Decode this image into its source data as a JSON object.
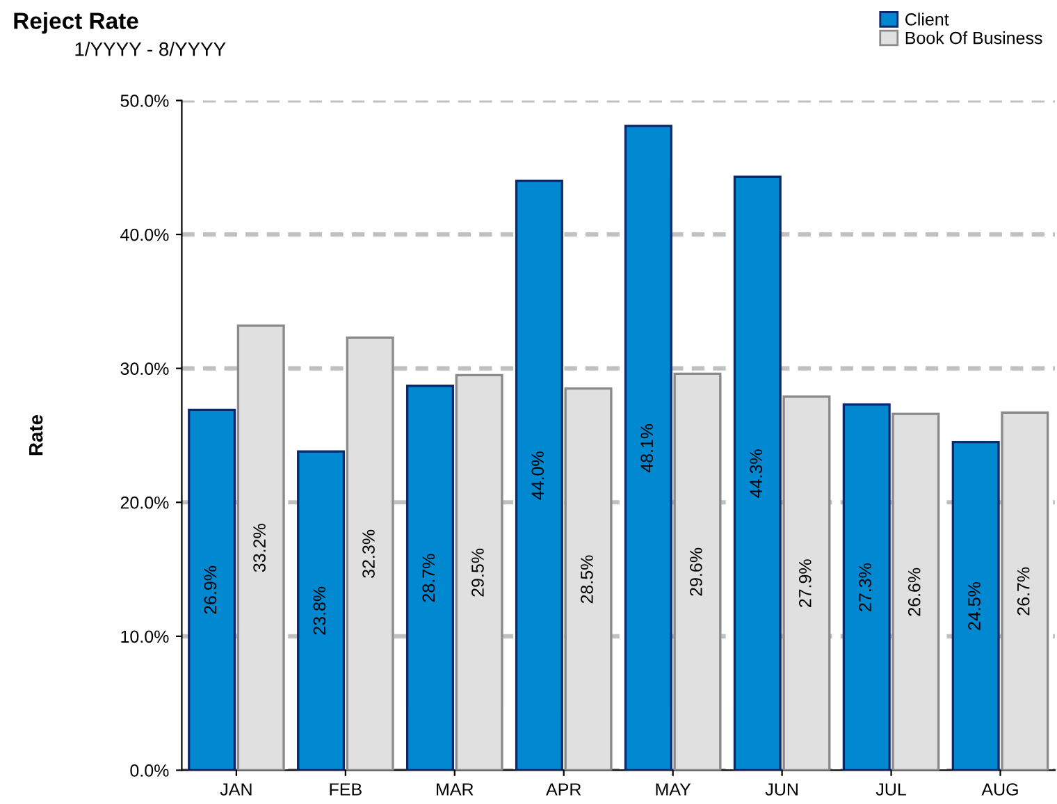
{
  "chart_data": {
    "type": "bar",
    "title": "Reject Rate",
    "subtitle": "1/YYYY - 8/YYYY",
    "ylabel": "Rate",
    "categories": [
      "JAN",
      "FEB",
      "MAR",
      "APR",
      "MAY",
      "JUN",
      "JUL",
      "AUG"
    ],
    "series": [
      {
        "name": "Client",
        "color": "#0088d1",
        "values": [
          26.9,
          23.8,
          28.7,
          44.0,
          48.1,
          44.3,
          27.3,
          24.5
        ],
        "value_labels": [
          "26.9%",
          "23.8%",
          "28.7%",
          "44.0%",
          "48.1%",
          "44.3%",
          "27.3%",
          "24.5%"
        ]
      },
      {
        "name": "Book Of Business",
        "color": "#e0e0e0",
        "values": [
          33.2,
          32.3,
          29.5,
          28.5,
          29.6,
          27.9,
          26.6,
          26.7
        ],
        "value_labels": [
          "33.2%",
          "32.3%",
          "29.5%",
          "28.5%",
          "29.6%",
          "27.9%",
          "26.6%",
          "26.7%"
        ]
      }
    ],
    "ylim": [
      0,
      50
    ],
    "yticks": [
      {
        "value": 0,
        "label": "0.0%"
      },
      {
        "value": 10,
        "label": "10.0%"
      },
      {
        "value": 20,
        "label": "20.0%"
      },
      {
        "value": 30,
        "label": "30.0%"
      },
      {
        "value": 40,
        "label": "40.0%"
      },
      {
        "value": 50,
        "label": "50.0%"
      }
    ],
    "grid": "y",
    "legend": "top right"
  }
}
